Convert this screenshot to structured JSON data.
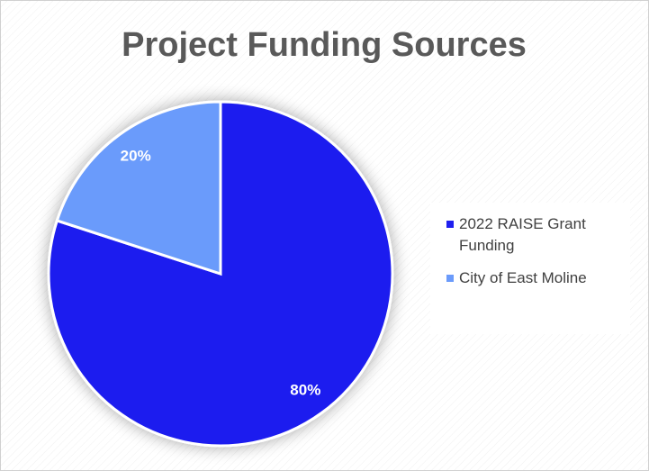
{
  "chart_data": {
    "type": "pie",
    "title": "Project Funding Sources",
    "categories": [
      "2022 RAISE Grant Funding",
      "City of East Moline"
    ],
    "values": [
      80,
      20
    ],
    "value_labels": [
      "80%",
      "20%"
    ],
    "colors": [
      "#1f1fef",
      "#6b9bfb"
    ],
    "legend": "right"
  }
}
